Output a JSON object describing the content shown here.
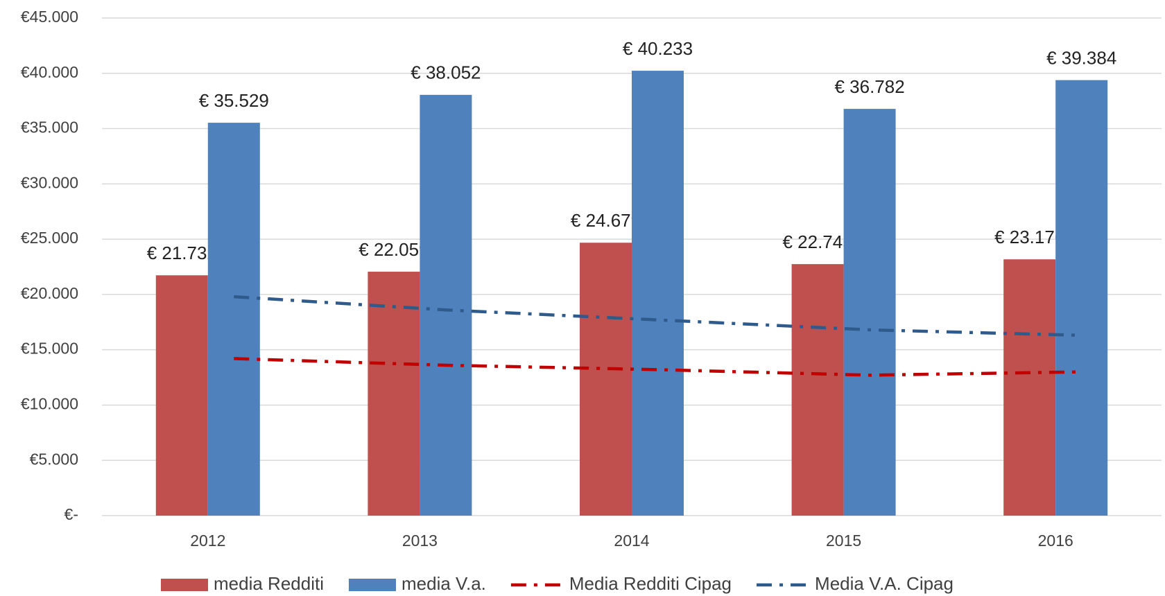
{
  "chart_data": {
    "type": "bar",
    "categories": [
      "2012",
      "2013",
      "2014",
      "2015",
      "2016"
    ],
    "series": [
      {
        "name": "media Redditi",
        "type": "bar",
        "color": "#c0504d",
        "values": [
          21732,
          22059,
          24679,
          22745,
          23176
        ],
        "value_labels": [
          "€ 21.732",
          "€ 22.059",
          "€ 24.679",
          "€ 22.745",
          "€ 23.176"
        ]
      },
      {
        "name": "media V.a.",
        "type": "bar",
        "color": "#4f81bd",
        "values": [
          35529,
          38052,
          40233,
          36782,
          39384
        ],
        "value_labels": [
          "€ 35.529",
          "€ 38.052",
          "€ 40.233",
          "€ 36.782",
          "€ 39.384"
        ]
      },
      {
        "name": "Media Redditi Cipag",
        "type": "line",
        "color": "#c00000",
        "values": [
          14200,
          13600,
          13200,
          12700,
          13000
        ]
      },
      {
        "name": "Media V.A. Cipag",
        "type": "line",
        "color": "#2f5b8c",
        "values": [
          19800,
          18600,
          17700,
          16800,
          16300
        ]
      }
    ],
    "ylim": [
      0,
      45000
    ],
    "yticks": [
      {
        "value": 0,
        "label": "€-"
      },
      {
        "value": 5000,
        "label": "€5.000"
      },
      {
        "value": 10000,
        "label": "€10.000"
      },
      {
        "value": 15000,
        "label": "€15.000"
      },
      {
        "value": 20000,
        "label": "€20.000"
      },
      {
        "value": 25000,
        "label": "€25.000"
      },
      {
        "value": 30000,
        "label": "€30.000"
      },
      {
        "value": 35000,
        "label": "€35.000"
      },
      {
        "value": 40000,
        "label": "€40.000"
      },
      {
        "value": 45000,
        "label": "€45.000"
      }
    ],
    "grid": true,
    "legend": "bottom"
  }
}
